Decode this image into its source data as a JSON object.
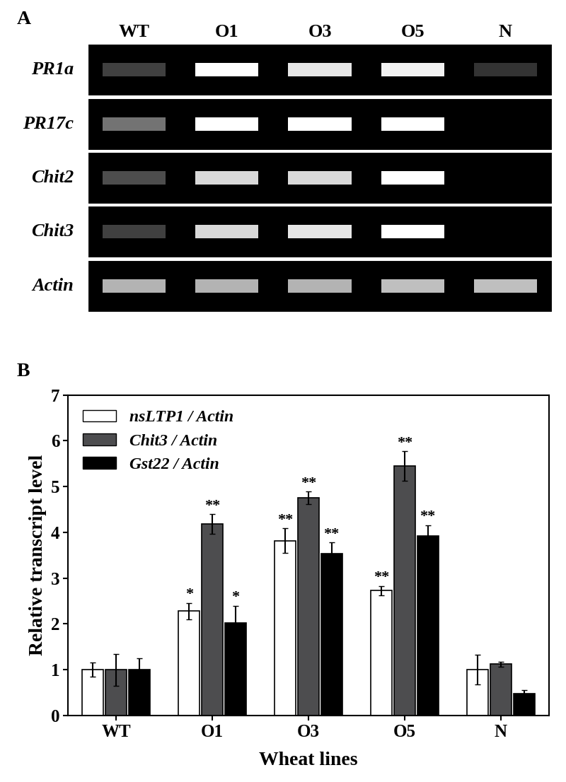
{
  "chart_data": [
    {
      "type": "gel",
      "panel_label": "A",
      "categories": [
        "WT",
        "O1",
        "O3",
        "O5",
        "N"
      ],
      "rows": [
        "PR1a",
        "PR17c",
        "Chit2",
        "Chit3",
        "Actin"
      ],
      "band_intensity": [
        [
          0.25,
          1.0,
          0.9,
          0.95,
          0.2
        ],
        [
          0.45,
          1.0,
          1.0,
          1.0,
          0.0
        ],
        [
          0.3,
          0.85,
          0.85,
          1.0,
          0.0
        ],
        [
          0.25,
          0.85,
          0.9,
          1.0,
          0.0
        ],
        [
          0.7,
          0.7,
          0.7,
          0.75,
          0.75
        ]
      ]
    },
    {
      "type": "bar",
      "panel_label": "B",
      "x_label": "Wheat lines",
      "y_label": "Relative transcript level",
      "categories": [
        "WT",
        "O1",
        "O3",
        "O5",
        "N"
      ],
      "series": [
        {
          "name": "nsLTP1 / Actin",
          "color": "#ffffff",
          "values": [
            1.0,
            2.28,
            3.82,
            2.73,
            1.0
          ],
          "errors": [
            0.15,
            0.18,
            0.27,
            0.1,
            0.32
          ],
          "significance": [
            null,
            "*",
            "**",
            "**",
            null
          ]
        },
        {
          "name": "Chit3 / Actin",
          "color": "#4d4d4f",
          "values": [
            1.0,
            4.18,
            4.75,
            5.45,
            1.12
          ],
          "errors": [
            0.35,
            0.22,
            0.14,
            0.32,
            0.05
          ],
          "significance": [
            null,
            "**",
            "**",
            "**",
            null
          ]
        },
        {
          "name": "Gst22 / Actin",
          "color": "#000000",
          "values": [
            1.0,
            2.02,
            3.53,
            3.92,
            0.48
          ],
          "errors": [
            0.25,
            0.38,
            0.25,
            0.24,
            0.07
          ],
          "significance": [
            null,
            "*",
            "**",
            "**",
            null
          ]
        }
      ],
      "ylim": [
        0,
        7
      ],
      "yticks": [
        0,
        1,
        2,
        3,
        4,
        5,
        6,
        7
      ],
      "legend": "upper left"
    }
  ]
}
